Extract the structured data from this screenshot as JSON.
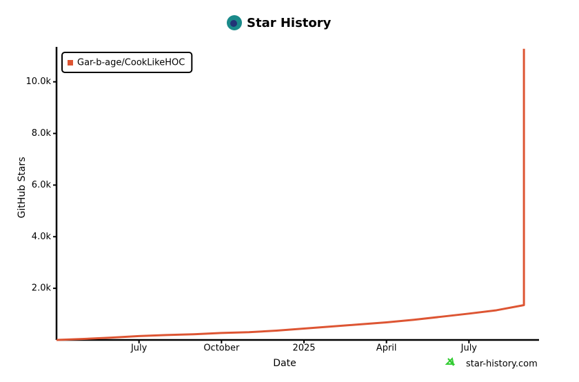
{
  "chart_data": {
    "type": "line",
    "title": "Star History",
    "xlabel": "Date",
    "ylabel": "GitHub Stars",
    "watermark": "star-history.com",
    "x": [
      "2024-04",
      "2024-05",
      "2024-06",
      "2024-07",
      "2024-08",
      "2024-09",
      "2024-10",
      "2024-11",
      "2024-12",
      "2025-01",
      "2025-02",
      "2025-03",
      "2025-04",
      "2025-05",
      "2025-06",
      "2025-07",
      "2025-08",
      "2025-09",
      "2025-09"
    ],
    "series": [
      {
        "name": "Gar-b-age/CookLikeHOC",
        "color": "#dd5533",
        "values": [
          0,
          40,
          90,
          150,
          190,
          220,
          270,
          300,
          360,
          440,
          520,
          600,
          680,
          780,
          900,
          1020,
          1150,
          1350,
          11280
        ]
      }
    ],
    "xlim": [
      "2024-04",
      "2025-10"
    ],
    "xticks": [
      {
        "value": "2024-07",
        "label": "July"
      },
      {
        "value": "2024-10",
        "label": "October"
      },
      {
        "value": "2025-01",
        "label": "2025"
      },
      {
        "value": "2025-04",
        "label": "April"
      },
      {
        "value": "2025-07",
        "label": "July"
      }
    ],
    "ylim": [
      0,
      11300
    ],
    "yticks": [
      {
        "value": 2000,
        "label": "2.0k"
      },
      {
        "value": 4000,
        "label": "4.0k"
      },
      {
        "value": 6000,
        "label": "6.0k"
      },
      {
        "value": 8000,
        "label": "8.0k"
      },
      {
        "value": 10000,
        "label": "10.0k"
      }
    ],
    "legend": "top-left"
  }
}
